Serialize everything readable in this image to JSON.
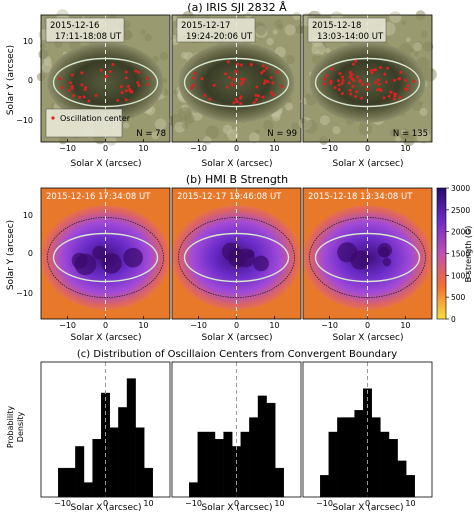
{
  "figure": {
    "panel_a": {
      "title": "(a) IRIS SJI 2832 Å",
      "ylabel": "Solar Y (arcsec)",
      "xlabel": "Solar X (arcsec)",
      "ticks": [
        "−10",
        "0",
        "10"
      ],
      "yticks": [
        "10",
        "0",
        "−10"
      ],
      "legend_label": "Oscillation center",
      "subpanels": [
        {
          "date": "2015-12-16",
          "time": "17:11-18:08 UT",
          "count": "N = 78"
        },
        {
          "date": "2015-12-17",
          "time": "19:24-20:06 UT",
          "count": "N = 99"
        },
        {
          "date": "2015-12-18",
          "time": "13:03-14:00 UT",
          "count": "N = 135"
        }
      ]
    },
    "panel_b": {
      "title": "(b) HMI B Strength",
      "ylabel": "Solar Y (arcsec)",
      "xlabel": "Solar X (arcsec)",
      "ticks": [
        "−10",
        "0",
        "10"
      ],
      "yticks": [
        "10",
        "0",
        "−10"
      ],
      "colorbar_label": "B strength (G)",
      "colorbar_ticks": [
        "3000",
        "2500",
        "2000",
        "1500",
        "1000",
        "500",
        "0"
      ],
      "subpanels": [
        {
          "timestamp": "2015-12-16 17:34:08 UT"
        },
        {
          "timestamp": "2015-12-17 19:46:08 UT"
        },
        {
          "timestamp": "2015-12-18 13:34:08 UT"
        }
      ]
    },
    "panel_c": {
      "title": "(c) Distribution of Oscillaion Centers from Convergent Boundary",
      "ylabel_line1": "Probability",
      "ylabel_line2": "Density",
      "xlabel": "Solar X (arcsec)",
      "ticks": [
        "−10",
        "0",
        "10"
      ]
    }
  },
  "chart_data": [
    {
      "type": "bar",
      "title": "(c) Distribution of Oscillaion Centers from Convergent Boundary",
      "xlabel": "Solar X (arcsec)",
      "ylabel": "Probability Density",
      "panel": "2015-12-16",
      "x": [
        -10,
        -8,
        -6,
        -4,
        -2,
        0,
        2,
        4,
        6,
        8,
        10
      ],
      "values": [
        0.2,
        0.2,
        0.35,
        0.1,
        0.4,
        0.72,
        0.48,
        0.62,
        0.82,
        0.48,
        0.2
      ],
      "xlim": [
        -15,
        15
      ]
    },
    {
      "type": "bar",
      "panel": "2015-12-17",
      "x": [
        -10,
        -8,
        -6,
        -4,
        -2,
        0,
        2,
        4,
        6,
        8,
        10
      ],
      "values": [
        0.1,
        0.45,
        0.45,
        0.4,
        0.45,
        0.35,
        0.45,
        0.55,
        0.7,
        0.65,
        0.2
      ],
      "xlim": [
        -15,
        15
      ]
    },
    {
      "type": "bar",
      "panel": "2015-12-18",
      "x": [
        -10,
        -8,
        -6,
        -4,
        -2,
        0,
        2,
        4,
        6,
        8,
        10
      ],
      "values": [
        0.15,
        0.45,
        0.55,
        0.55,
        0.6,
        0.75,
        0.55,
        0.45,
        0.4,
        0.25,
        0.15
      ],
      "xlim": [
        -15,
        15
      ]
    }
  ],
  "colors": {
    "sunspot_light": "#9a9a70",
    "sunspot_dark": "#2f3220",
    "oscillation_marker": "#dd2020",
    "ellipse": "#d8e6d0",
    "bar": "#000000",
    "field_strong": "#3a0a6a",
    "field_weak": "#f0b020"
  }
}
